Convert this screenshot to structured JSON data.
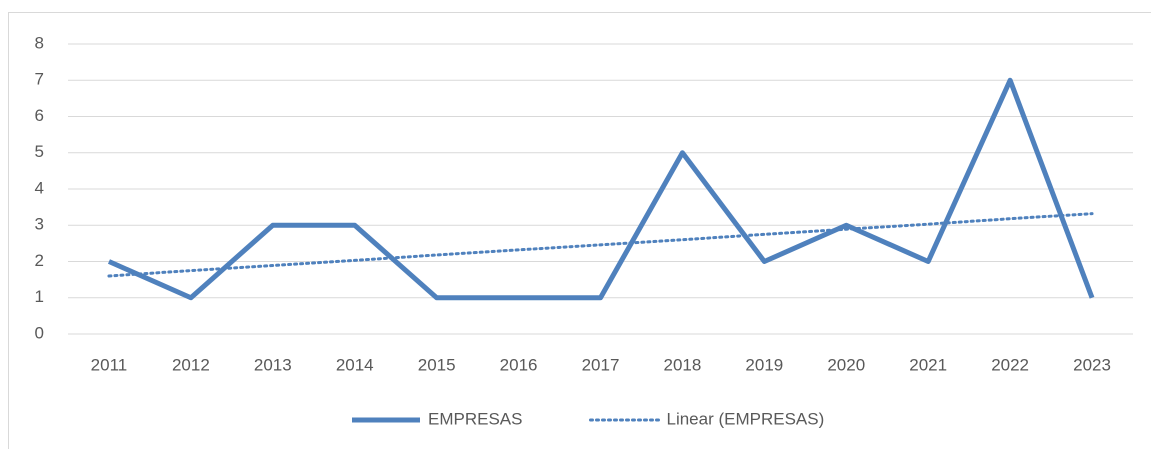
{
  "chart_data": {
    "type": "line",
    "categories": [
      "2011",
      "2012",
      "2013",
      "2014",
      "2015",
      "2016",
      "2017",
      "2018",
      "2019",
      "2020",
      "2021",
      "2022",
      "2023"
    ],
    "series": [
      {
        "name": "EMPRESAS",
        "color": "#4f81bd",
        "style": "solid",
        "values": [
          2,
          1,
          3,
          3,
          1,
          1,
          1,
          5,
          2,
          3,
          2,
          7,
          1
        ]
      },
      {
        "name": "Linear (EMPRESAS)",
        "color": "#4f81bd",
        "style": "dotted",
        "values": [
          1.6,
          1.75,
          1.89,
          2.03,
          2.18,
          2.32,
          2.46,
          2.6,
          2.75,
          2.89,
          3.03,
          3.18,
          3.32
        ]
      }
    ],
    "ylim": [
      0,
      8
    ],
    "yticks": [
      0,
      1,
      2,
      3,
      4,
      5,
      6,
      7,
      8
    ],
    "grid": true,
    "legend": "bottom"
  }
}
